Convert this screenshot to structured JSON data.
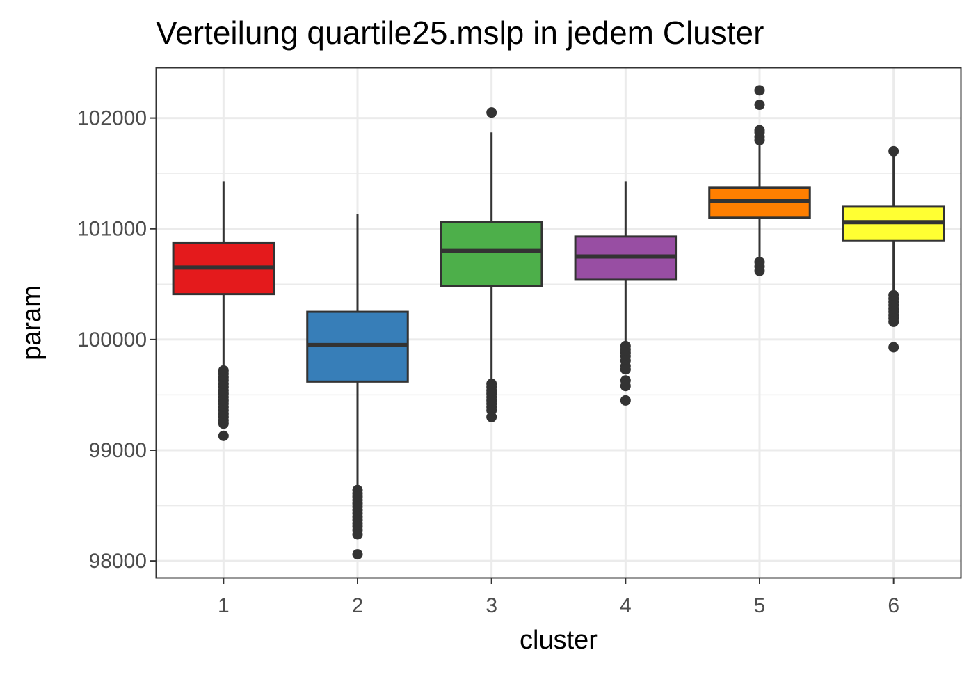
{
  "chart_data": {
    "type": "boxplot",
    "title": "Verteilung quartile25.mslp in jedem Cluster",
    "xlabel": "cluster",
    "ylabel": "param",
    "categories": [
      "1",
      "2",
      "3",
      "4",
      "5",
      "6"
    ],
    "y_ticks": [
      98000,
      99000,
      100000,
      101000,
      102000
    ],
    "y_tick_labels": [
      "98000",
      "99000",
      "100000",
      "101000",
      "102000"
    ],
    "ylim": [
      97850,
      102450
    ],
    "grid": true,
    "legend": "none",
    "boxes": [
      {
        "cluster": "1",
        "color": "#E41A1C",
        "whisker_low": 99740,
        "q1": 100410,
        "median": 100650,
        "q3": 100870,
        "whisker_high": 101430,
        "outliers": [
          99720,
          99690,
          99660,
          99630,
          99600,
          99570,
          99540,
          99510,
          99480,
          99450,
          99420,
          99390,
          99360,
          99330,
          99300,
          99270,
          99240,
          99130
        ]
      },
      {
        "cluster": "2",
        "color": "#377EB8",
        "whisker_low": 98650,
        "q1": 99620,
        "median": 99950,
        "q3": 100250,
        "whisker_high": 101130,
        "outliers": [
          98640,
          98610,
          98580,
          98550,
          98520,
          98490,
          98460,
          98430,
          98400,
          98370,
          98340,
          98310,
          98280,
          98240,
          98060
        ]
      },
      {
        "cluster": "3",
        "color": "#4DAF4A",
        "whisker_low": 99620,
        "q1": 100480,
        "median": 100800,
        "q3": 101060,
        "whisker_high": 101870,
        "outliers": [
          99600,
          99570,
          99540,
          99510,
          99480,
          99450,
          99420,
          99390,
          99360,
          99300,
          102050
        ]
      },
      {
        "cluster": "4",
        "color": "#984EA3",
        "whisker_low": 99960,
        "q1": 100540,
        "median": 100750,
        "q3": 100930,
        "whisker_high": 101430,
        "outliers": [
          99940,
          99910,
          99880,
          99850,
          99810,
          99760,
          99730,
          99630,
          99580,
          99450
        ]
      },
      {
        "cluster": "5",
        "color": "#FF7F00",
        "whisker_low": 100720,
        "q1": 101100,
        "median": 101250,
        "q3": 101370,
        "whisker_high": 101760,
        "outliers": [
          100700,
          100660,
          100620,
          101800,
          101830,
          101870,
          101890,
          102120,
          102250
        ]
      },
      {
        "cluster": "6",
        "color": "#FFFF33",
        "whisker_low": 100420,
        "q1": 100890,
        "median": 101060,
        "q3": 101200,
        "whisker_high": 101680,
        "outliers": [
          100400,
          100370,
          100340,
          100310,
          100280,
          100250,
          100220,
          100190,
          100160,
          99930,
          101700
        ]
      }
    ]
  }
}
